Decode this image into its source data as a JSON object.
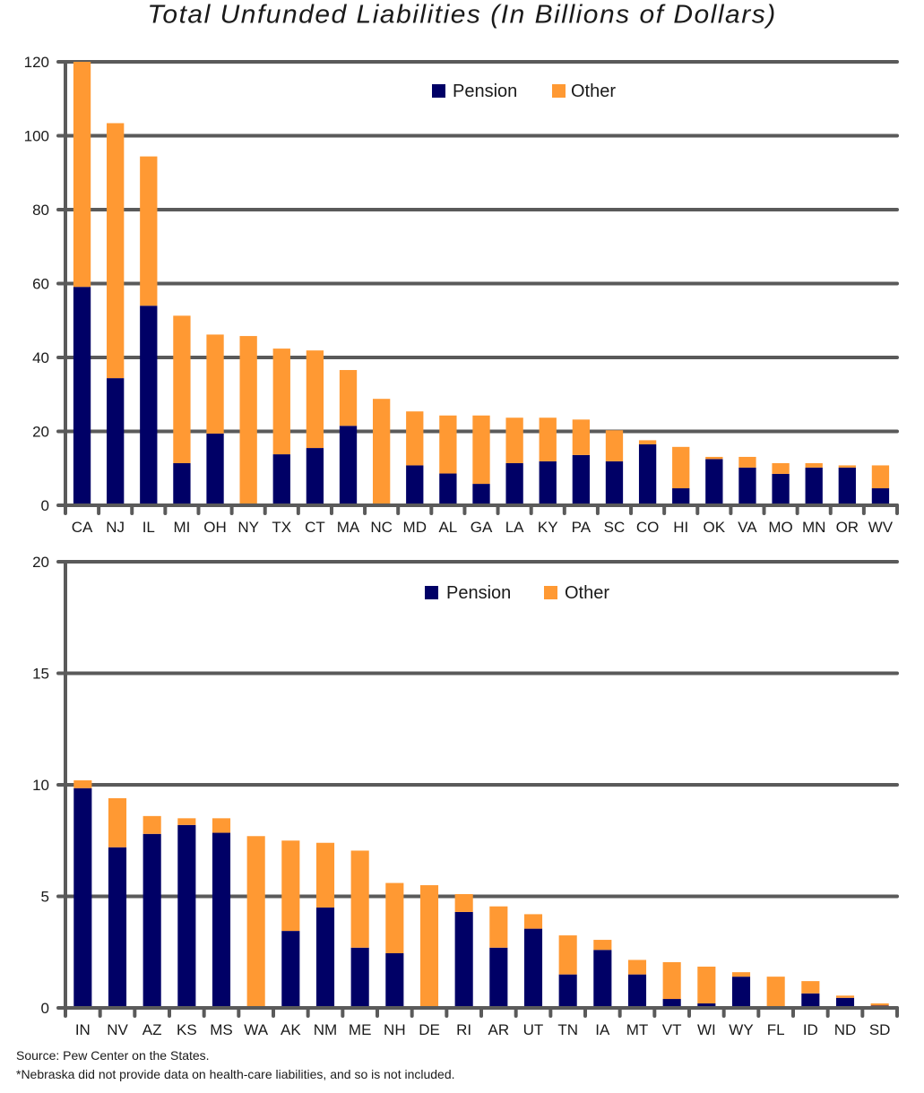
{
  "title": "Total Unfunded Liabilities (In Billions of Dollars)",
  "source": "Source: Pew Center on the States.",
  "note": "*Nebraska did not provide data on health-care liabilities, and so is not included.",
  "colors": {
    "pension": "#000066",
    "other": "#ff9933",
    "grid": "#5a5a5a"
  },
  "chart_data": [
    {
      "type": "bar",
      "stacked": true,
      "title": "Total Unfunded Liabilities (In Billions of Dollars)",
      "xlabel": "",
      "ylabel": "",
      "ylim": [
        0,
        120
      ],
      "yticks": [
        0,
        20,
        40,
        60,
        80,
        100,
        120
      ],
      "grid": true,
      "legend": {
        "position": "top-center",
        "entries": [
          "Pension",
          "Other"
        ]
      },
      "categories": [
        "CA",
        "NJ",
        "IL",
        "MI",
        "OH",
        "NY",
        "TX",
        "CT",
        "MA",
        "NC",
        "MD",
        "AL",
        "GA",
        "LA",
        "KY",
        "PA",
        "SC",
        "CO",
        "HI",
        "OK",
        "VA",
        "MO",
        "MN",
        "OR",
        "WV"
      ],
      "series": [
        {
          "name": "Pension",
          "values": [
            59.1,
            34.4,
            54.0,
            11.4,
            19.4,
            0,
            13.8,
            15.5,
            21.5,
            0,
            10.8,
            8.6,
            5.8,
            11.4,
            11.9,
            13.6,
            11.9,
            16.5,
            4.6,
            12.5,
            10.2,
            8.5,
            10.2,
            10.2,
            4.6
          ]
        },
        {
          "name": "Other",
          "values": [
            60.9,
            69.0,
            40.4,
            39.9,
            26.8,
            45.8,
            28.6,
            26.4,
            15.1,
            28.8,
            14.6,
            15.7,
            18.5,
            12.3,
            11.8,
            9.6,
            8.4,
            1.1,
            11.2,
            0.6,
            2.9,
            2.9,
            1.2,
            0.6,
            6.2
          ]
        }
      ]
    },
    {
      "type": "bar",
      "stacked": true,
      "title": "",
      "xlabel": "",
      "ylabel": "",
      "ylim": [
        0,
        20
      ],
      "yticks": [
        0,
        5,
        10,
        15,
        20
      ],
      "grid": true,
      "legend": {
        "position": "top-center",
        "entries": [
          "Pension",
          "Other"
        ]
      },
      "categories": [
        "IN",
        "NV",
        "AZ",
        "KS",
        "MS",
        "WA",
        "AK",
        "NM",
        "ME",
        "NH",
        "DE",
        "RI",
        "AR",
        "UT",
        "TN",
        "IA",
        "MT",
        "VT",
        "WI",
        "WY",
        "FL",
        "ID",
        "ND",
        "SD"
      ],
      "series": [
        {
          "name": "Pension",
          "values": [
            9.85,
            7.2,
            7.8,
            8.2,
            7.85,
            0,
            3.45,
            4.5,
            2.7,
            2.45,
            0,
            4.3,
            2.7,
            3.55,
            1.5,
            2.6,
            1.5,
            0.4,
            0.2,
            1.4,
            0,
            0.65,
            0.45,
            0.1
          ]
        },
        {
          "name": "Other",
          "values": [
            0.35,
            2.2,
            0.8,
            0.3,
            0.65,
            7.7,
            4.05,
            2.9,
            4.35,
            3.15,
            5.5,
            0.8,
            1.85,
            0.65,
            1.75,
            0.45,
            0.65,
            1.65,
            1.65,
            0.2,
            1.4,
            0.55,
            0.1,
            0.1
          ]
        }
      ]
    }
  ]
}
